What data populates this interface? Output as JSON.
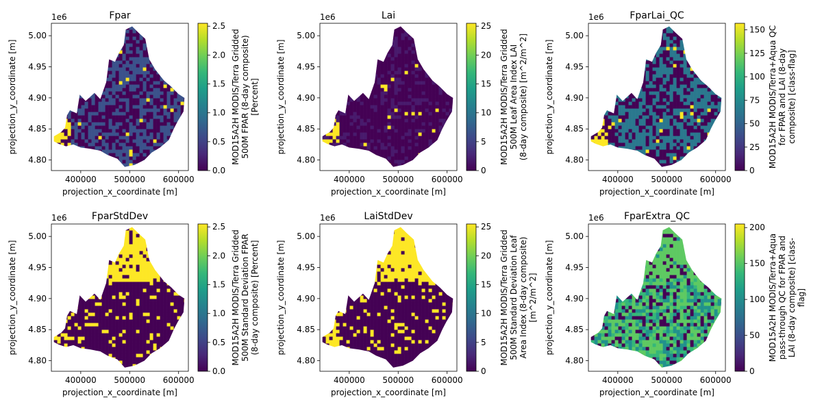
{
  "figure": {
    "colormap": [
      "#440154",
      "#482878",
      "#3e4989",
      "#31688e",
      "#26828e",
      "#1f9e89",
      "#35b779",
      "#6ece58",
      "#b5de2b",
      "#fde725"
    ],
    "palette": {
      "purple": "#440154",
      "blue": "#3b528b",
      "teal": "#21918c",
      "green": "#5ec962",
      "yellow": "#fde725"
    }
  },
  "chart_data": [
    {
      "type": "heatmap",
      "title": "Fpar",
      "xlabel": "projection_x_coordinate [m]",
      "ylabel": "projection_y_coordinate [m]",
      "y_offset_label": "1e6",
      "xlim": [
        340000,
        620000
      ],
      "ylim": [
        4783000,
        5020000
      ],
      "xticks": [
        400000,
        500000,
        600000
      ],
      "xtick_labels": [
        "400000",
        "500000",
        "600000"
      ],
      "yticks": [
        4.8,
        4.85,
        4.9,
        4.95,
        5.0
      ],
      "ytick_labels": [
        "4.80",
        "4.85",
        "4.90",
        "4.95",
        "5.00"
      ],
      "colorbar": {
        "range": [
          0,
          2.55
        ],
        "ticks": [
          0.0,
          0.5,
          1.0,
          1.5,
          2.0,
          2.5
        ],
        "tick_labels": [
          "0.0",
          "0.5",
          "1.0",
          "1.5",
          "2.0",
          "2.5"
        ],
        "label_lines": [
          "MOD15A2H MODIS/Terra Gridded",
          "500M FPAR (8-day composite)",
          "[Percent]"
        ]
      },
      "pattern": {
        "base": "#3b528b",
        "alt": "#440154",
        "alt_frac": 0.45,
        "highlight": "#fde725",
        "highlight_rule": "edge"
      }
    },
    {
      "type": "heatmap",
      "title": "Lai",
      "xlabel": "projection_x_coordinate [m]",
      "ylabel": "projection_y_coordinate [m]",
      "y_offset_label": "1e6",
      "xlim": [
        340000,
        620000
      ],
      "ylim": [
        4783000,
        5020000
      ],
      "xticks": [
        400000,
        500000,
        600000
      ],
      "xtick_labels": [
        "400000",
        "500000",
        "600000"
      ],
      "yticks": [
        4.8,
        4.85,
        4.9,
        4.95,
        5.0
      ],
      "ytick_labels": [
        "4.80",
        "4.85",
        "4.90",
        "4.95",
        "5.00"
      ],
      "colorbar": {
        "range": [
          0,
          25.5
        ],
        "ticks": [
          0,
          5,
          10,
          15,
          20,
          25
        ],
        "tick_labels": [
          "0",
          "5",
          "10",
          "15",
          "20",
          "25"
        ],
        "label_lines": [
          "MOD15A2H MODIS/Terra Gridded",
          "500M Leaf Area Index LAI",
          "(8-day composite) [m^2/m^2]"
        ]
      },
      "pattern": {
        "base": "#440154",
        "alt": "#481a6c",
        "alt_frac": 0.25,
        "highlight": "#fde725",
        "highlight_rule": "edge"
      }
    },
    {
      "type": "heatmap",
      "title": "FparLai_QC",
      "xlabel": "projection_x_coordinate [m]",
      "ylabel": "projection_y_coordinate [m]",
      "y_offset_label": "1e6",
      "xlim": [
        340000,
        620000
      ],
      "ylim": [
        4783000,
        5020000
      ],
      "xticks": [
        400000,
        500000,
        600000
      ],
      "xtick_labels": [
        "400000",
        "500000",
        "600000"
      ],
      "yticks": [
        4.8,
        4.85,
        4.9,
        4.95,
        5.0
      ],
      "ytick_labels": [
        "4.80",
        "4.85",
        "4.90",
        "4.95",
        "5.00"
      ],
      "colorbar": {
        "range": [
          0,
          157
        ],
        "ticks": [
          0,
          25,
          50,
          75,
          100,
          125,
          150
        ],
        "tick_labels": [
          "0",
          "25",
          "50",
          "75",
          "100",
          "125",
          "150"
        ],
        "label_lines": [
          "MOD15A2H MODIS/Terra+Aqua QC",
          "for FPAR and LAI (8-day",
          "composite) [class-flag]"
        ]
      },
      "pattern": {
        "base": "#2a788e",
        "alt": "#440154",
        "alt_frac": 0.45,
        "highlight": "#fde725",
        "highlight_rule": "edge"
      }
    },
    {
      "type": "heatmap",
      "title": "FparStdDev",
      "xlabel": "projection_x_coordinate [m]",
      "ylabel": "projection_y_coordinate [m]",
      "y_offset_label": "1e6",
      "xlim": [
        340000,
        620000
      ],
      "ylim": [
        4783000,
        5020000
      ],
      "xticks": [
        400000,
        500000,
        600000
      ],
      "xtick_labels": [
        "400000",
        "500000",
        "600000"
      ],
      "yticks": [
        4.8,
        4.85,
        4.9,
        4.95,
        5.0
      ],
      "ytick_labels": [
        "4.80",
        "4.85",
        "4.90",
        "4.95",
        "5.00"
      ],
      "colorbar": {
        "range": [
          0,
          2.55
        ],
        "ticks": [
          0.0,
          0.5,
          1.0,
          1.5,
          2.0,
          2.5
        ],
        "tick_labels": [
          "0.0",
          "0.5",
          "1.0",
          "1.5",
          "2.0",
          "2.5"
        ],
        "label_lines": [
          "MOD15A2H MODIS/Terra Gridded",
          "500M Standard Deviation FPAR",
          "(8-day composite) [Percent]"
        ]
      },
      "pattern": {
        "base": "#440154",
        "alt": "#fde725",
        "alt_frac": 0.3,
        "highlight": "#fde725",
        "highlight_rule": "north"
      }
    },
    {
      "type": "heatmap",
      "title": "LaiStdDev",
      "xlabel": "projection_x_coordinate [m]",
      "ylabel": "projection_y_coordinate [m]",
      "y_offset_label": "1e6",
      "xlim": [
        340000,
        620000
      ],
      "ylim": [
        4783000,
        5020000
      ],
      "xticks": [
        400000,
        500000,
        600000
      ],
      "xtick_labels": [
        "400000",
        "500000",
        "600000"
      ],
      "yticks": [
        4.8,
        4.85,
        4.9,
        4.95,
        5.0
      ],
      "ytick_labels": [
        "4.80",
        "4.85",
        "4.90",
        "4.95",
        "5.00"
      ],
      "colorbar": {
        "range": [
          0,
          25.5
        ],
        "ticks": [
          0,
          5,
          10,
          15,
          20,
          25
        ],
        "tick_labels": [
          "0",
          "5",
          "10",
          "15",
          "20",
          "25"
        ],
        "label_lines": [
          "MOD15A2H MODIS/Terra Gridded",
          "500M Standard Deviation Leaf",
          "Area Index (8-day composite)",
          "[m^2/m^2]"
        ]
      },
      "pattern": {
        "base": "#440154",
        "alt": "#fde725",
        "alt_frac": 0.3,
        "highlight": "#fde725",
        "highlight_rule": "north"
      }
    },
    {
      "type": "heatmap",
      "title": "FparExtra_QC",
      "xlabel": "projection_x_coordinate [m]",
      "ylabel": "projection_y_coordinate [m]",
      "y_offset_label": "1e6",
      "xlim": [
        340000,
        620000
      ],
      "ylim": [
        4783000,
        5020000
      ],
      "xticks": [
        400000,
        500000,
        600000
      ],
      "xtick_labels": [
        "400000",
        "500000",
        "600000"
      ],
      "yticks": [
        4.8,
        4.85,
        4.9,
        4.95,
        5.0
      ],
      "ytick_labels": [
        "4.80",
        "4.85",
        "4.90",
        "4.95",
        "5.00"
      ],
      "colorbar": {
        "range": [
          0,
          205
        ],
        "ticks": [
          0,
          50,
          100,
          150,
          200
        ],
        "tick_labels": [
          "0",
          "50",
          "100",
          "150",
          "200"
        ],
        "label_lines": [
          "MOD15A2H MODIS/Terra+Aqua",
          "pass-through QC for FPAR and",
          "LAI (8-day composite) [class-",
          "flag]"
        ]
      },
      "pattern": {
        "base": "#5ec962",
        "alt": "#440154",
        "alt_frac": 0.3,
        "highlight": "#21918c",
        "highlight_rule": "mixed"
      }
    }
  ]
}
